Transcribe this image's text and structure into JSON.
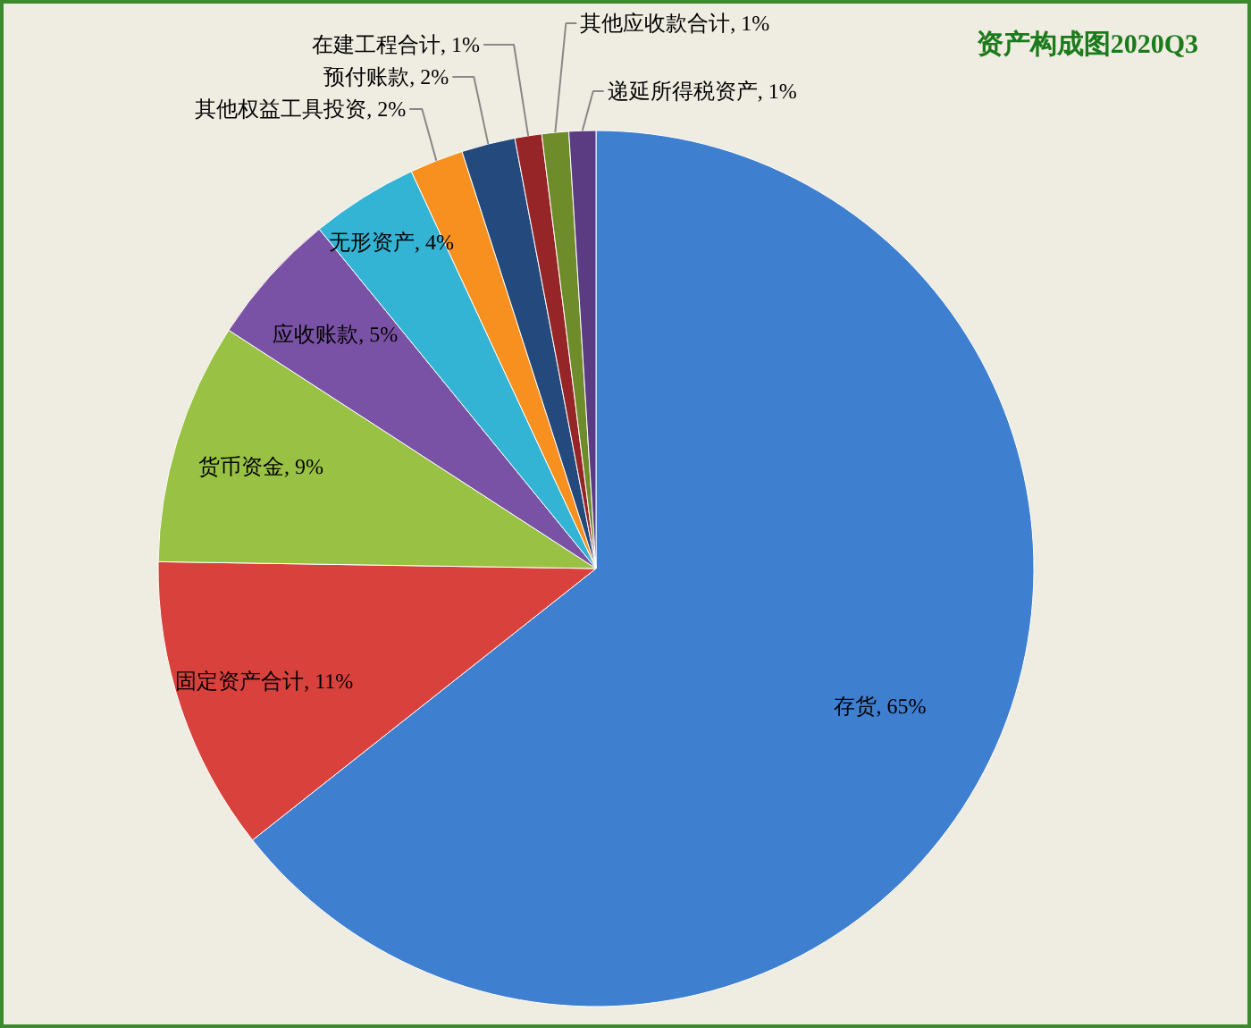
{
  "chart_data": {
    "type": "pie",
    "title": "资产构成图2020Q3",
    "categories": [
      "存货",
      "固定资产合计",
      "货币资金",
      "应收账款",
      "无形资产",
      "其他权益工具投资",
      "预付账款",
      "在建工程合计",
      "其他应收款合计",
      "递延所得税资产"
    ],
    "values": [
      65,
      11,
      9,
      5,
      4,
      2,
      2,
      1,
      1,
      1
    ],
    "value_labels": [
      "65%",
      "11%",
      "9%",
      "5%",
      "4%",
      "2%",
      "2%",
      "1%",
      "1%",
      "1%"
    ],
    "colors": [
      "#3f7fd0",
      "#d9413c",
      "#99c244",
      "#7a52a5",
      "#34b4d5",
      "#f7901e",
      "#24497c",
      "#962527",
      "#6f8c2b",
      "#5b3b82"
    ]
  }
}
